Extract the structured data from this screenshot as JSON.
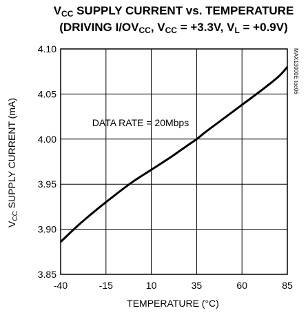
{
  "chart_data": {
    "type": "line",
    "title_line1": {
      "a": "V",
      "a_sub": "CC",
      "b": " SUPPLY CURRENT vs. TEMPERATURE"
    },
    "title_line2": {
      "a": "(DRIVING I/OV",
      "a_sub": "CC",
      "b": ", V",
      "b_sub": "CC",
      "c": " = +3.3V, V",
      "c_sub": "L",
      "d": " = +0.9V)"
    },
    "xlabel": "TEMPERATURE (°C)",
    "ylabel": {
      "a": "V",
      "a_sub": "CC",
      "b": " SUPPLY CURRENT (mA)"
    },
    "xlim": [
      -40,
      85
    ],
    "ylim": [
      3.85,
      4.1
    ],
    "x_ticks": [
      -40,
      -15,
      10,
      35,
      60,
      85
    ],
    "x_tick_labels": [
      "-40",
      "-15",
      "10",
      "35",
      "60",
      "85"
    ],
    "y_ticks": [
      3.85,
      3.9,
      3.95,
      4.0,
      4.05,
      4.1
    ],
    "y_tick_labels": [
      "3.85",
      "3.90",
      "3.95",
      "4.00",
      "4.05",
      "4.10"
    ],
    "grid": true,
    "annotation": "DATA RATE = 20Mbps",
    "side_note": "MAX13000E toc06",
    "series": [
      {
        "x": [
          -40,
          -30,
          -20,
          -10,
          0,
          10,
          20,
          30,
          35,
          40,
          50,
          60,
          70,
          80,
          85
        ],
        "y": [
          3.886,
          3.905,
          3.922,
          3.938,
          3.953,
          3.966,
          3.979,
          3.993,
          4.0,
          4.008,
          4.023,
          4.038,
          4.053,
          4.069,
          4.08
        ]
      }
    ]
  }
}
